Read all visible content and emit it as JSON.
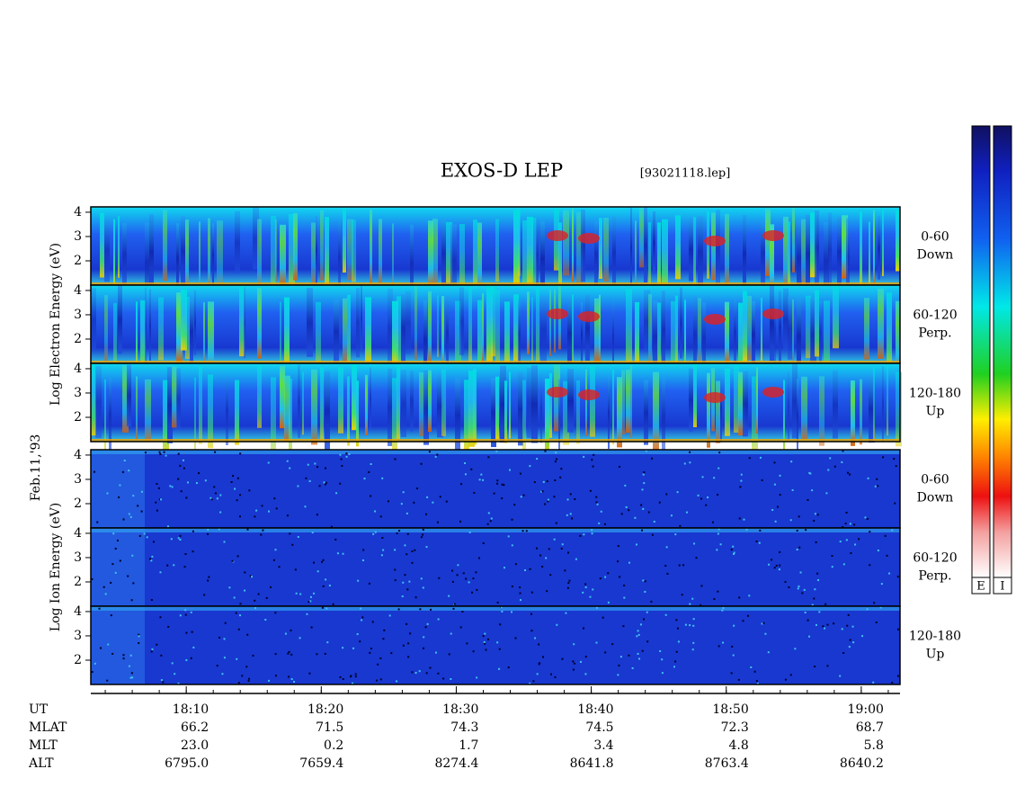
{
  "header": {
    "title": "EXOS-D LEP",
    "file": "[93021118.lep]"
  },
  "colorbars": [
    "E",
    "I"
  ],
  "chart_data": {
    "type": "spectrogram",
    "date_label": "Feb.11,'93",
    "groups": [
      {
        "ylabel": "Log Electron Energy (eV)",
        "species": "electron",
        "panels": [
          {
            "angle": "0-60",
            "direction": "Down"
          },
          {
            "angle": "60-120",
            "direction": "Perp."
          },
          {
            "angle": "120-180",
            "direction": "Up"
          }
        ]
      },
      {
        "ylabel": "Log Ion Energy (eV)",
        "species": "ion",
        "panels": [
          {
            "angle": "0-60",
            "direction": "Down"
          },
          {
            "angle": "60-120",
            "direction": "Perp."
          },
          {
            "angle": "120-180",
            "direction": "Up"
          }
        ]
      }
    ],
    "ylim": [
      1,
      4.22
    ],
    "yticks": [
      2,
      3,
      4
    ],
    "xlim": [
      1082.93,
      1142.87
    ],
    "xticks": [
      {
        "value": 1090,
        "label": "18:10"
      },
      {
        "value": 1100,
        "label": "18:20"
      },
      {
        "value": 1110,
        "label": "18:30"
      },
      {
        "value": 1120,
        "label": "18:40"
      },
      {
        "value": 1130,
        "label": "18:50"
      },
      {
        "value": 1140,
        "label": "19:00"
      }
    ],
    "xlabel": "UT",
    "orbit": [
      {
        "name": "MLAT",
        "values": [
          "66.2",
          "71.5",
          "74.3",
          "74.5",
          "72.3",
          "68.7"
        ]
      },
      {
        "name": "MLT",
        "values": [
          "23.0",
          "0.2",
          "1.7",
          "3.4",
          "4.8",
          "5.8"
        ]
      },
      {
        "name": "ALT",
        "values": [
          "6795.0",
          "7659.4",
          "8274.4",
          "8641.8",
          "8763.4",
          "8640.2"
        ]
      }
    ]
  }
}
